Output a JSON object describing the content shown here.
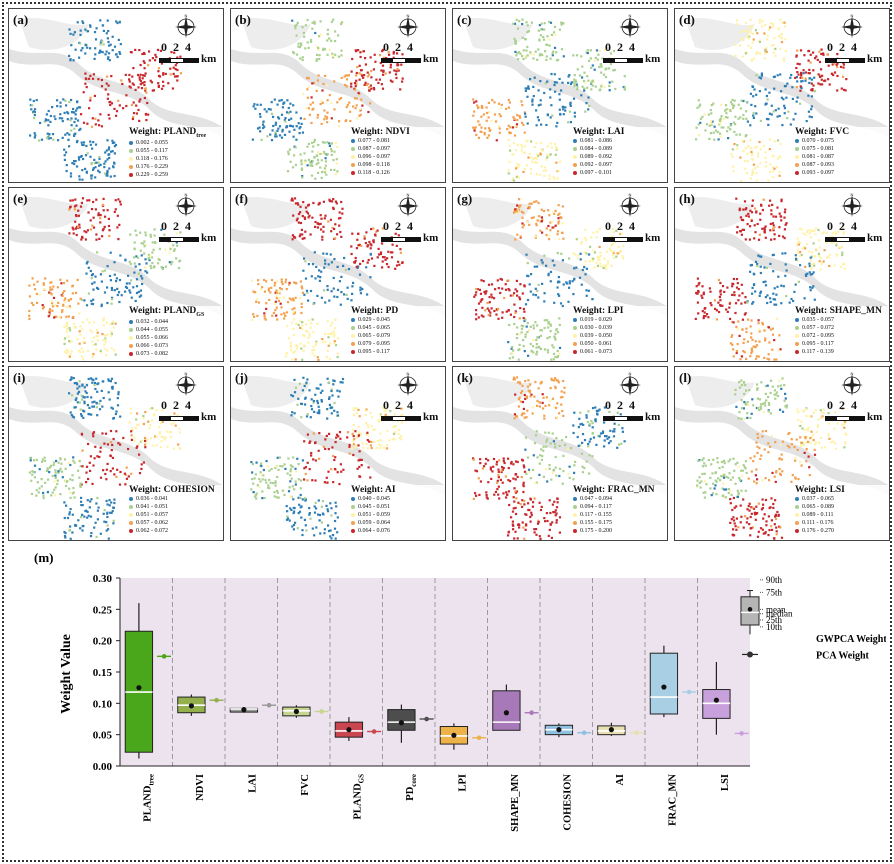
{
  "panels": [
    {
      "label": "(a)",
      "title": "Weight: PLAND",
      "title_sub": "tree",
      "pattern": "a",
      "legend": [
        "0.002 - 0.055",
        "0.055 - 0.117",
        "0.118 - 0.176",
        "0.176 - 0.229",
        "0.229 - 0.259"
      ]
    },
    {
      "label": "(b)",
      "title": "Weight: NDVI",
      "title_sub": "",
      "pattern": "b",
      "legend": [
        "0.077 - 0.081",
        "0.087 - 0.097",
        "0.096 - 0.097",
        "0.098 - 0.118",
        "0.118 - 0.126"
      ]
    },
    {
      "label": "(c)",
      "title": "Weight: LAI",
      "title_sub": "",
      "pattern": "c",
      "legend": [
        "0.081 - 0.086",
        "0.084 - 0.089",
        "0.089 - 0.092",
        "0.092 - 0.097",
        "0.097 - 0.101"
      ]
    },
    {
      "label": "(d)",
      "title": "Weight: FVC",
      "title_sub": "",
      "pattern": "d",
      "legend": [
        "0.070 - 0.075",
        "0.075 - 0.081",
        "0.081 - 0.087",
        "0.087 - 0.093",
        "0.093 - 0.097"
      ]
    },
    {
      "label": "(e)",
      "title": "Weight: PLAND",
      "title_sub": "GS",
      "pattern": "e",
      "legend": [
        "0.032 - 0.044",
        "0.044 - 0.055",
        "0.055 - 0.066",
        "0.066 - 0.073",
        "0.073 - 0.082"
      ]
    },
    {
      "label": "(f)",
      "title": "Weight: PD",
      "title_sub": "",
      "pattern": "f",
      "legend": [
        "0.029 - 0.045",
        "0.045 - 0.065",
        "0.065 - 0.079",
        "0.079 - 0.095",
        "0.095 - 0.117"
      ]
    },
    {
      "label": "(g)",
      "title": "Weight: LPI",
      "title_sub": "",
      "pattern": "g",
      "legend": [
        "0.019 - 0.029",
        "0.030 - 0.039",
        "0.039 - 0.050",
        "0.050 - 0.061",
        "0.061 - 0.073"
      ]
    },
    {
      "label": "(h)",
      "title": "Weight: SHAPE_MN",
      "title_sub": "",
      "pattern": "h",
      "legend": [
        "0.035 - 0.057",
        "0.057 - 0.072",
        "0.072 - 0.095",
        "0.095 - 0.117",
        "0.117 - 0.139"
      ]
    },
    {
      "label": "(i)",
      "title": "Weight: COHESION",
      "title_sub": "",
      "pattern": "i",
      "legend": [
        "0.036 - 0.041",
        "0.041 - 0.051",
        "0.051 - 0.057",
        "0.057 - 0.062",
        "0.062 - 0.072"
      ]
    },
    {
      "label": "(j)",
      "title": "Weight: AI",
      "title_sub": "",
      "pattern": "j",
      "legend": [
        "0.040 - 0.045",
        "0.045 - 0.051",
        "0.051 - 0.059",
        "0.059 - 0.064",
        "0.064 - 0.076"
      ]
    },
    {
      "label": "(k)",
      "title": "Weight: FRAC_MN",
      "title_sub": "",
      "pattern": "k",
      "legend": [
        "0.047 - 0.094",
        "0.094 - 0.117",
        "0.117 - 0.155",
        "0.155 - 0.175",
        "0.175 - 0.200"
      ]
    },
    {
      "label": "(l)",
      "title": "Weight: LSI",
      "title_sub": "",
      "pattern": "l",
      "legend": [
        "0.037 - 0.065",
        "0.065 - 0.089",
        "0.089 - 0.111",
        "0.111 - 0.176",
        "0.176 - 0.270"
      ]
    }
  ],
  "scale": {
    "numbers": "0 2 4",
    "unit": "km",
    "north": "N"
  },
  "map_colors": [
    "#2e7eb6",
    "#a9d08e",
    "#fff2a8",
    "#f3a14f",
    "#c8282d"
  ],
  "chart_data": {
    "type": "box",
    "panel_label": "(m)",
    "ylabel": "Weight Value",
    "ylim": [
      0.0,
      0.3
    ],
    "yticks": [
      "0.00",
      "0.05",
      "0.10",
      "0.15",
      "0.20",
      "0.25",
      "0.30"
    ],
    "categories": [
      {
        "main": "PLAND",
        "sub": "tree"
      },
      {
        "main": "NDVI",
        "sub": ""
      },
      {
        "main": "LAI",
        "sub": ""
      },
      {
        "main": "FVC",
        "sub": ""
      },
      {
        "main": "PLAND",
        "sub": "GS"
      },
      {
        "main": "PD",
        "sub": "core"
      },
      {
        "main": "LPI",
        "sub": ""
      },
      {
        "main": "SHAPE_MN",
        "sub": ""
      },
      {
        "main": "COHESION",
        "sub": ""
      },
      {
        "main": "AI",
        "sub": ""
      },
      {
        "main": "FRAC_MN",
        "sub": ""
      },
      {
        "main": "LSI",
        "sub": ""
      }
    ],
    "colors": [
      "#4aa71c",
      "#93b04c",
      "#9a9a9a",
      "#c6d590",
      "#c9454f",
      "#4d4d4d",
      "#eeb24a",
      "#a879b8",
      "#8fc0e0",
      "#e8dfb2",
      "#a9cfe4",
      "#c8a0dc"
    ],
    "gwpca": [
      {
        "p10": 0.012,
        "q1": 0.022,
        "median": 0.118,
        "mean": 0.125,
        "q3": 0.215,
        "p90": 0.26
      },
      {
        "p10": 0.08,
        "q1": 0.085,
        "median": 0.097,
        "mean": 0.096,
        "q3": 0.11,
        "p90": 0.114
      },
      {
        "p10": 0.085,
        "q1": 0.086,
        "median": 0.091,
        "mean": 0.09,
        "q3": 0.092,
        "p90": 0.094
      },
      {
        "p10": 0.077,
        "q1": 0.08,
        "median": 0.088,
        "mean": 0.087,
        "q3": 0.094,
        "p90": 0.097
      },
      {
        "p10": 0.04,
        "q1": 0.046,
        "median": 0.056,
        "mean": 0.058,
        "q3": 0.07,
        "p90": 0.078
      },
      {
        "p10": 0.037,
        "q1": 0.057,
        "median": 0.07,
        "mean": 0.069,
        "q3": 0.09,
        "p90": 0.098
      },
      {
        "p10": 0.026,
        "q1": 0.035,
        "median": 0.048,
        "mean": 0.049,
        "q3": 0.063,
        "p90": 0.068
      },
      {
        "p10": 0.058,
        "q1": 0.057,
        "median": 0.07,
        "mean": 0.085,
        "q3": 0.12,
        "p90": 0.13
      },
      {
        "p10": 0.046,
        "q1": 0.05,
        "median": 0.058,
        "mean": 0.058,
        "q3": 0.065,
        "p90": 0.068
      },
      {
        "p10": 0.048,
        "q1": 0.05,
        "median": 0.056,
        "mean": 0.058,
        "q3": 0.064,
        "p90": 0.069
      },
      {
        "p10": 0.078,
        "q1": 0.083,
        "median": 0.11,
        "mean": 0.126,
        "q3": 0.18,
        "p90": 0.192
      },
      {
        "p10": 0.05,
        "q1": 0.076,
        "median": 0.1,
        "mean": 0.105,
        "q3": 0.122,
        "p90": 0.166
      }
    ],
    "pca": [
      0.175,
      0.105,
      0.097,
      0.087,
      0.055,
      0.075,
      0.045,
      0.085,
      0.053,
      0.053,
      0.118,
      0.052
    ],
    "legend_box": {
      "labels": [
        "90th",
        "75th",
        "mean",
        "median",
        "25th",
        "10th"
      ]
    },
    "legend_series": [
      "GWPCA Weight",
      "PCA Weight"
    ],
    "plot_background": "#ede3ee"
  }
}
